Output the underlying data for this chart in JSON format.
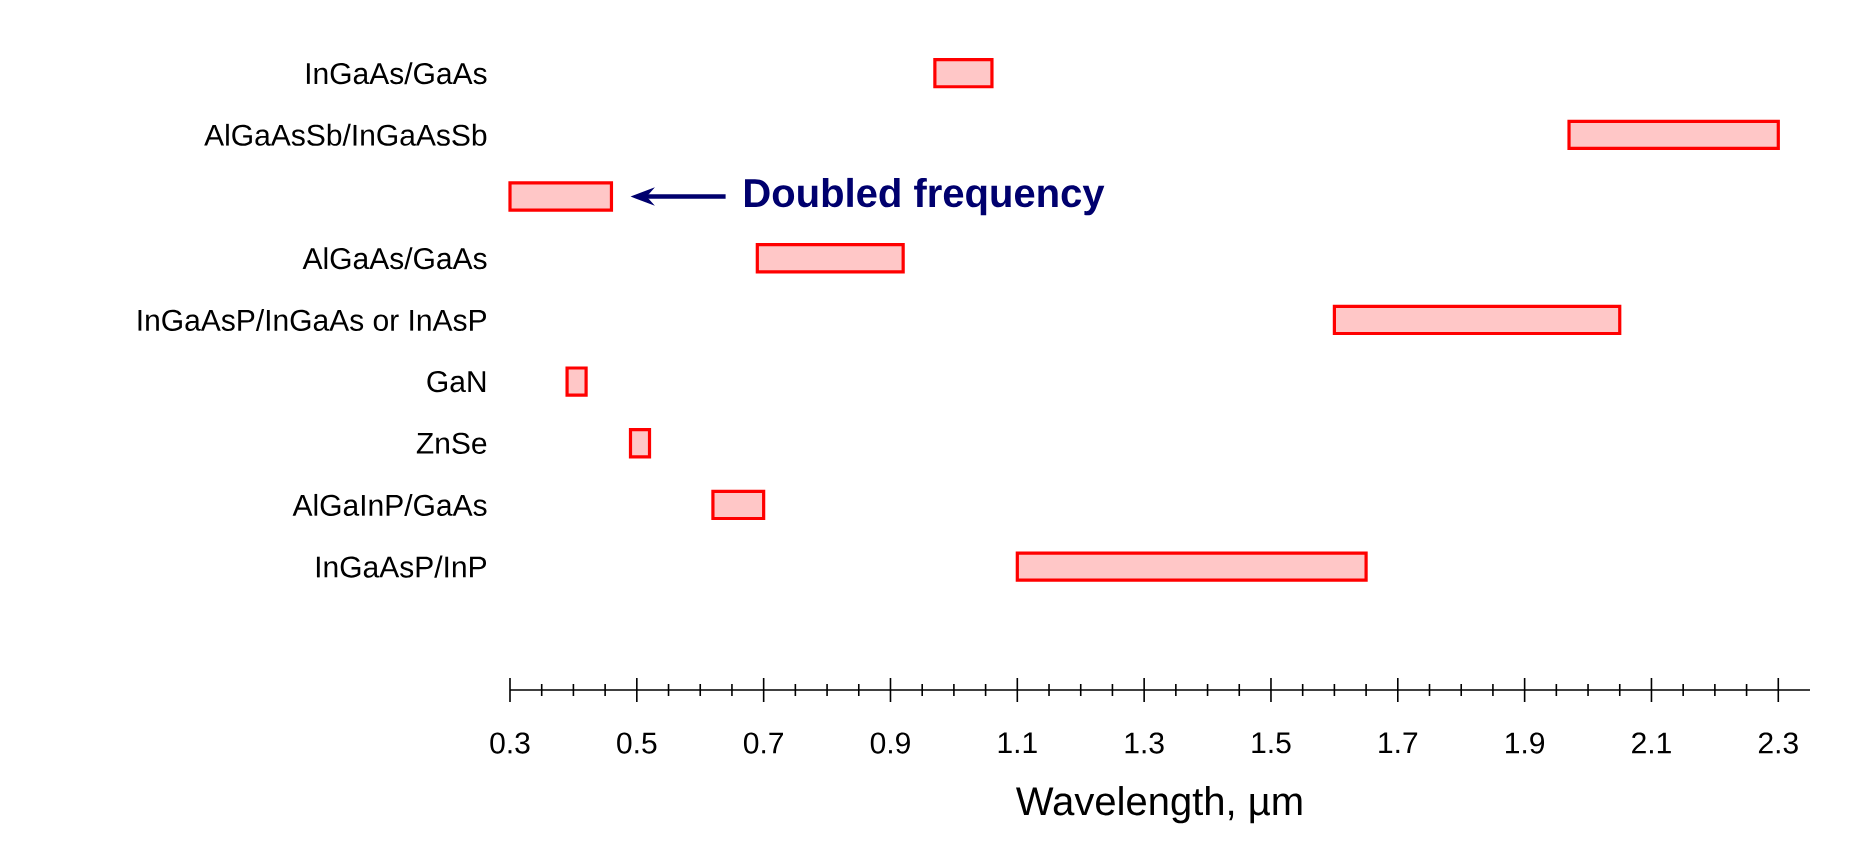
{
  "chart_data": {
    "type": "bar",
    "orientation": "horizontal",
    "xlabel": "Wavelength, µm",
    "categories": [
      "InGaAs/GaAs",
      "AlGaAsSb/InGaAsSb",
      null,
      "AlGaAs/GaAs",
      "InGaAsP/InGaAs or InAsP",
      "GaN",
      "ZnSe",
      "AlGaInP/GaAs",
      "InGaAsP/InP"
    ],
    "base": [
      0.97,
      1.97,
      0.3,
      0.69,
      1.6,
      0.39,
      0.49,
      0.62,
      1.1
    ],
    "values": [
      0.09,
      0.33,
      0.16,
      0.23,
      0.45,
      0.03,
      0.03,
      0.08,
      0.55
    ],
    "color": "#ff0000",
    "xlim": [
      0.3,
      2.35
    ],
    "xticks": [
      0.3,
      0.5,
      0.7,
      0.9,
      1.1,
      1.3,
      1.5,
      1.7,
      1.9,
      2.1,
      2.3
    ],
    "annotations": [
      "Doubled frequency"
    ],
    "grid": false
  }
}
